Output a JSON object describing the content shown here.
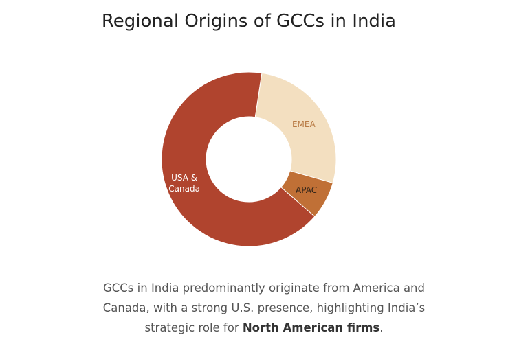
{
  "chart_data": {
    "type": "donut",
    "title": "Regional Origins of GCCs in India",
    "categories": [
      "USA & Canada",
      "EMEA",
      "APAC"
    ],
    "values": [
      66,
      27,
      7
    ],
    "colors": [
      "#b0442e",
      "#f3dfc0",
      "#c07036"
    ],
    "label_colors": [
      "#ffffff",
      "#b87a44",
      "#2e2218"
    ]
  },
  "caption": {
    "text": "GCCs in India predominantly originate from America and Canada, with a strong U.S. presence, highlighting India’s strategic role for ",
    "bold": "North American firms",
    "end": "."
  }
}
